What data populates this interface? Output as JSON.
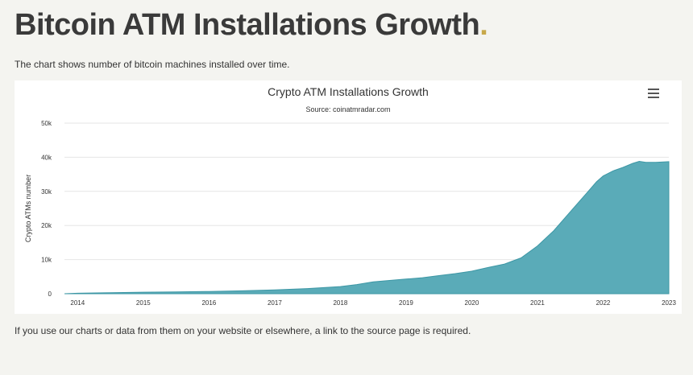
{
  "page": {
    "title": "Bitcoin ATM Installations Growth",
    "title_dot": ".",
    "subtitle": "The chart shows number of bitcoin machines installed over time.",
    "footnote": "If you use our charts or data from them on your website or elsewhere, a link to the source page is required."
  },
  "chart_menu_icon": "hamburger-menu-icon",
  "colors": {
    "area_fill": "#5aabb8",
    "area_stroke": "#3d97a5",
    "title_dot": "#c7a84a",
    "gridline": "#e6e6e6"
  },
  "chart_data": {
    "type": "area",
    "title": "Crypto ATM Installations Growth",
    "subtitle": "Source: coinatmradar.com",
    "xlabel": "",
    "ylabel": "Crypto ATMs number",
    "xlim": [
      2013.8,
      2023.0
    ],
    "ylim": [
      0,
      50000
    ],
    "x_ticks": [
      2014,
      2015,
      2016,
      2017,
      2018,
      2019,
      2020,
      2021,
      2022,
      2023
    ],
    "x_tick_labels": [
      "2014",
      "2015",
      "2016",
      "2017",
      "2018",
      "2019",
      "2020",
      "2021",
      "2022",
      "2023"
    ],
    "y_ticks": [
      0,
      10000,
      20000,
      30000,
      40000,
      50000
    ],
    "y_tick_labels": [
      "0",
      "10k",
      "20k",
      "30k",
      "40k",
      "50k"
    ],
    "grid": true,
    "series": [
      {
        "name": "Crypto ATMs",
        "x": [
          2013.8,
          2014.0,
          2014.5,
          2015.0,
          2015.5,
          2016.0,
          2016.5,
          2017.0,
          2017.5,
          2018.0,
          2018.25,
          2018.5,
          2018.75,
          2019.0,
          2019.25,
          2019.5,
          2019.75,
          2020.0,
          2020.25,
          2020.5,
          2020.75,
          2021.0,
          2021.25,
          2021.5,
          2021.75,
          2021.9,
          2022.0,
          2022.15,
          2022.3,
          2022.45,
          2022.55,
          2022.65,
          2022.8,
          2023.0
        ],
        "values": [
          0,
          150,
          300,
          450,
          550,
          650,
          850,
          1100,
          1500,
          2100,
          2700,
          3500,
          3900,
          4300,
          4700,
          5300,
          5900,
          6600,
          7700,
          8700,
          10500,
          14000,
          18500,
          24000,
          29500,
          32800,
          34500,
          36000,
          37000,
          38200,
          38800,
          38500,
          38500,
          38700
        ]
      }
    ]
  }
}
